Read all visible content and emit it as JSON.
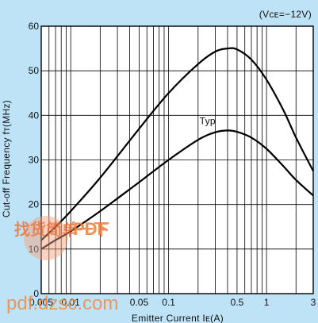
{
  "chart_data": {
    "type": "line",
    "condition": "(Vᴄᴇ=−12V)",
    "xlabel": "Emitter Current Iᴇ(A)",
    "ylabel": "Cut-off Frequency fᴛ(MHz)",
    "x_scale": "log",
    "xlim": [
      0.005,
      3
    ],
    "ylim": [
      0,
      60
    ],
    "x_ticks": [
      0.005,
      0.01,
      0.05,
      0.1,
      0.5,
      1,
      3
    ],
    "x_tick_labels": [
      "0.005",
      "0.01",
      "0.05",
      "0.1",
      "0.5",
      "1",
      "3"
    ],
    "y_ticks": [
      0,
      10,
      20,
      30,
      40,
      50,
      60
    ],
    "y_tick_labels": [
      "0",
      "10",
      "20",
      "30",
      "40",
      "50",
      "60"
    ],
    "grid": true,
    "annotations": [
      {
        "text": "Typ",
        "x": 0.25,
        "y": 37.5
      }
    ],
    "series": [
      {
        "x": [
          0.005,
          0.007,
          0.01,
          0.02,
          0.05,
          0.1,
          0.2,
          0.3,
          0.4,
          0.5,
          0.7,
          1,
          1.5,
          2,
          3
        ],
        "values": [
          12,
          15,
          18.5,
          26,
          37,
          45,
          51.5,
          54.3,
          55,
          54.8,
          52.5,
          48,
          41,
          35,
          27.5
        ]
      },
      {
        "x": [
          0.005,
          0.007,
          0.01,
          0.02,
          0.05,
          0.1,
          0.2,
          0.3,
          0.4,
          0.5,
          0.7,
          1,
          1.5,
          2,
          3
        ],
        "values": [
          10,
          12,
          14,
          18.5,
          25,
          30,
          34.5,
          36.2,
          36.6,
          36.3,
          35,
          32.5,
          28.5,
          25.5,
          22
        ]
      }
    ]
  },
  "watermark": {
    "text_cn": "找货简单一下",
    "pdf": "PDF",
    "url": "pdf.dzsc.com"
  }
}
